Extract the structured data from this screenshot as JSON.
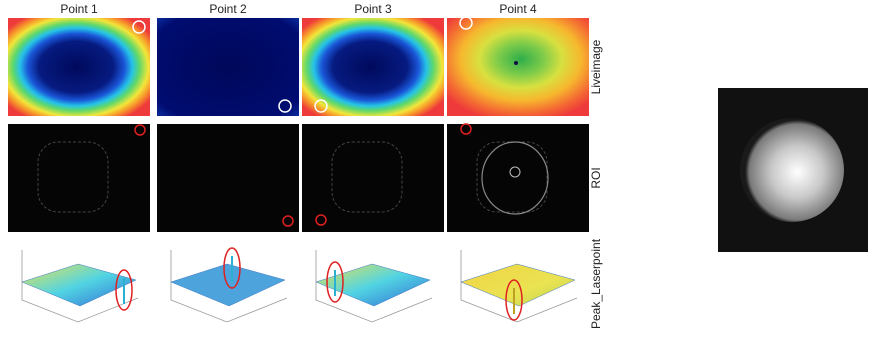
{
  "columns": [
    "Point 1",
    "Point 2",
    "Point 3",
    "Point 4"
  ],
  "rows": [
    "Liveimage",
    "ROI",
    "Peak_Laserpoint"
  ]
}
